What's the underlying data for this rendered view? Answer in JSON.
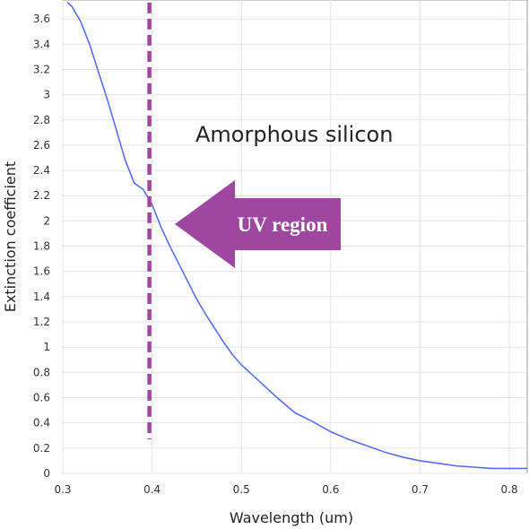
{
  "chart_data": {
    "type": "line",
    "xlabel": "Wavelength (um)",
    "ylabel": "Extinction coefficient",
    "xlim": [
      0.3,
      0.82
    ],
    "ylim": [
      0,
      3.75
    ],
    "xticks": [
      "0.3",
      "0.4",
      "0.5",
      "0.6",
      "0.7",
      "0.8"
    ],
    "yticks": [
      "0",
      "0.2",
      "0.4",
      "0.6",
      "0.8",
      "1",
      "1.2",
      "1.4",
      "1.6",
      "1.8",
      "2",
      "2.2",
      "2.4",
      "2.6",
      "2.8",
      "3",
      "3.2",
      "3.4",
      "3.6"
    ],
    "grid": true,
    "series": [
      {
        "x": [
          0.305,
          0.31,
          0.32,
          0.33,
          0.34,
          0.35,
          0.36,
          0.37,
          0.38,
          0.39,
          0.4,
          0.41,
          0.42,
          0.43,
          0.44,
          0.45,
          0.46,
          0.47,
          0.48,
          0.49,
          0.5,
          0.52,
          0.54,
          0.55,
          0.56,
          0.58,
          0.6,
          0.62,
          0.64,
          0.66,
          0.68,
          0.7,
          0.72,
          0.74,
          0.76,
          0.78,
          0.8,
          0.82
        ],
        "y": [
          3.73,
          3.7,
          3.58,
          3.4,
          3.18,
          2.96,
          2.72,
          2.48,
          2.3,
          2.25,
          2.13,
          1.95,
          1.8,
          1.66,
          1.52,
          1.38,
          1.26,
          1.15,
          1.04,
          0.94,
          0.86,
          0.73,
          0.6,
          0.54,
          0.48,
          0.41,
          0.33,
          0.27,
          0.22,
          0.17,
          0.13,
          0.1,
          0.08,
          0.06,
          0.05,
          0.04,
          0.04,
          0.04
        ],
        "color": "#5a6ef2"
      }
    ],
    "annotations": {
      "text": "Amorphous silicon",
      "arrow_label": "UV region",
      "arrow_color": "#9e479e",
      "dashed_line_x": 0.4,
      "dashed_line_y_range": [
        0.27,
        3.73
      ],
      "dashed_line_color": "#9e479e"
    }
  }
}
